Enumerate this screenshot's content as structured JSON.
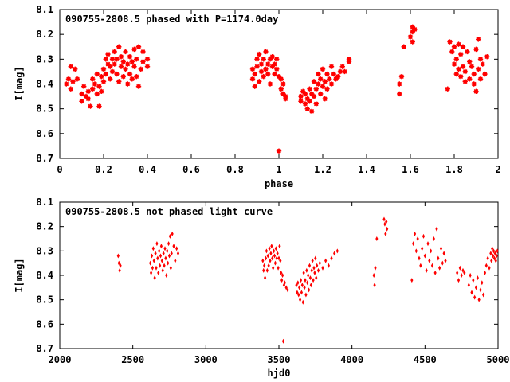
{
  "chart_data": [
    {
      "type": "scatter",
      "title": "090755-2808.5 phased with P=1174.0day",
      "xlabel": "phase",
      "ylabel": "I[mag]",
      "xlim": [
        0,
        2
      ],
      "ylim": [
        8.7,
        8.1
      ],
      "y_inverted": true,
      "xticks": [
        "0",
        "0.2",
        "0.4",
        "0.6",
        "0.8",
        "1",
        "1.2",
        "1.4",
        "1.6",
        "1.8",
        "2"
      ],
      "yticks": [
        "8.1",
        "8.2",
        "8.3",
        "8.4",
        "8.5",
        "8.6",
        "8.7"
      ],
      "marker_color": "#ff0000",
      "points": [
        [
          0.03,
          8.4
        ],
        [
          0.04,
          8.38
        ],
        [
          0.05,
          8.33
        ],
        [
          0.05,
          8.42
        ],
        [
          0.06,
          8.39
        ],
        [
          0.07,
          8.34
        ],
        [
          0.08,
          8.38
        ],
        [
          0.1,
          8.44
        ],
        [
          0.1,
          8.47
        ],
        [
          0.11,
          8.41
        ],
        [
          0.12,
          8.45
        ],
        [
          0.13,
          8.46
        ],
        [
          0.13,
          8.43
        ],
        [
          0.14,
          8.49
        ],
        [
          0.15,
          8.42
        ],
        [
          0.15,
          8.38
        ],
        [
          0.16,
          8.4
        ],
        [
          0.17,
          8.44
        ],
        [
          0.17,
          8.36
        ],
        [
          0.18,
          8.41
        ],
        [
          0.18,
          8.49
        ],
        [
          0.19,
          8.43
        ],
        [
          0.19,
          8.37
        ],
        [
          0.2,
          8.34
        ],
        [
          0.2,
          8.39
        ],
        [
          0.21,
          8.3
        ],
        [
          0.21,
          8.36
        ],
        [
          0.22,
          8.32
        ],
        [
          0.22,
          8.28
        ],
        [
          0.23,
          8.33
        ],
        [
          0.23,
          8.38
        ],
        [
          0.24,
          8.3
        ],
        [
          0.24,
          8.35
        ],
        [
          0.25,
          8.27
        ],
        [
          0.25,
          8.32
        ],
        [
          0.26,
          8.36
        ],
        [
          0.26,
          8.3
        ],
        [
          0.27,
          8.39
        ],
        [
          0.27,
          8.25
        ],
        [
          0.28,
          8.33
        ],
        [
          0.28,
          8.29
        ],
        [
          0.29,
          8.37
        ],
        [
          0.29,
          8.31
        ],
        [
          0.3,
          8.34
        ],
        [
          0.3,
          8.27
        ],
        [
          0.31,
          8.4
        ],
        [
          0.31,
          8.32
        ],
        [
          0.32,
          8.29
        ],
        [
          0.32,
          8.36
        ],
        [
          0.33,
          8.31
        ],
        [
          0.33,
          8.38
        ],
        [
          0.34,
          8.26
        ],
        [
          0.34,
          8.33
        ],
        [
          0.35,
          8.3
        ],
        [
          0.35,
          8.37
        ],
        [
          0.36,
          8.41
        ],
        [
          0.36,
          8.25
        ],
        [
          0.37,
          8.34
        ],
        [
          0.38,
          8.31
        ],
        [
          0.38,
          8.27
        ],
        [
          0.4,
          8.33
        ],
        [
          0.4,
          8.3
        ],
        [
          0.88,
          8.34
        ],
        [
          0.88,
          8.38
        ],
        [
          0.89,
          8.41
        ],
        [
          0.89,
          8.36
        ],
        [
          0.9,
          8.33
        ],
        [
          0.9,
          8.3
        ],
        [
          0.91,
          8.39
        ],
        [
          0.91,
          8.28
        ],
        [
          0.92,
          8.35
        ],
        [
          0.92,
          8.32
        ],
        [
          0.93,
          8.37
        ],
        [
          0.93,
          8.3
        ],
        [
          0.94,
          8.34
        ],
        [
          0.94,
          8.27
        ],
        [
          0.95,
          8.32
        ],
        [
          0.95,
          8.36
        ],
        [
          0.96,
          8.3
        ],
        [
          0.96,
          8.4
        ],
        [
          0.97,
          8.33
        ],
        [
          0.97,
          8.29
        ],
        [
          0.98,
          8.36
        ],
        [
          0.98,
          8.32
        ],
        [
          0.99,
          8.34
        ],
        [
          0.99,
          8.3
        ],
        [
          1.0,
          8.37
        ],
        [
          1.0,
          8.67
        ],
        [
          1.01,
          8.38
        ],
        [
          1.01,
          8.42
        ],
        [
          1.02,
          8.4
        ],
        [
          1.02,
          8.44
        ],
        [
          1.03,
          8.45
        ],
        [
          1.03,
          8.46
        ],
        [
          1.1,
          8.45
        ],
        [
          1.1,
          8.47
        ],
        [
          1.11,
          8.43
        ],
        [
          1.12,
          8.48
        ],
        [
          1.12,
          8.44
        ],
        [
          1.13,
          8.46
        ],
        [
          1.13,
          8.5
        ],
        [
          1.14,
          8.42
        ],
        [
          1.14,
          8.47
        ],
        [
          1.15,
          8.51
        ],
        [
          1.15,
          8.44
        ],
        [
          1.16,
          8.39
        ],
        [
          1.16,
          8.45
        ],
        [
          1.17,
          8.42
        ],
        [
          1.17,
          8.48
        ],
        [
          1.18,
          8.4
        ],
        [
          1.18,
          8.36
        ],
        [
          1.19,
          8.44
        ],
        [
          1.19,
          8.38
        ],
        [
          1.2,
          8.41
        ],
        [
          1.2,
          8.34
        ],
        [
          1.21,
          8.46
        ],
        [
          1.21,
          8.39
        ],
        [
          1.22,
          8.36
        ],
        [
          1.22,
          8.42
        ],
        [
          1.23,
          8.38
        ],
        [
          1.24,
          8.33
        ],
        [
          1.24,
          8.4
        ],
        [
          1.25,
          8.36
        ],
        [
          1.26,
          8.38
        ],
        [
          1.27,
          8.37
        ],
        [
          1.28,
          8.35
        ],
        [
          1.29,
          8.33
        ],
        [
          1.3,
          8.35
        ],
        [
          1.32,
          8.3
        ],
        [
          1.32,
          8.31
        ],
        [
          1.55,
          8.4
        ],
        [
          1.55,
          8.44
        ],
        [
          1.56,
          8.37
        ],
        [
          1.57,
          8.25
        ],
        [
          1.61,
          8.17
        ],
        [
          1.61,
          8.19
        ],
        [
          1.62,
          8.18
        ],
        [
          1.61,
          8.23
        ],
        [
          1.6,
          8.21
        ],
        [
          1.77,
          8.42
        ],
        [
          1.78,
          8.23
        ],
        [
          1.79,
          8.27
        ],
        [
          1.8,
          8.25
        ],
        [
          1.8,
          8.32
        ],
        [
          1.81,
          8.3
        ],
        [
          1.81,
          8.36
        ],
        [
          1.82,
          8.24
        ],
        [
          1.82,
          8.34
        ],
        [
          1.83,
          8.28
        ],
        [
          1.83,
          8.37
        ],
        [
          1.84,
          8.33
        ],
        [
          1.84,
          8.25
        ],
        [
          1.85,
          8.39
        ],
        [
          1.85,
          8.35
        ],
        [
          1.86,
          8.27
        ],
        [
          1.87,
          8.31
        ],
        [
          1.87,
          8.38
        ],
        [
          1.88,
          8.33
        ],
        [
          1.89,
          8.36
        ],
        [
          1.89,
          8.4
        ],
        [
          1.9,
          8.43
        ],
        [
          1.9,
          8.26
        ],
        [
          1.91,
          8.22
        ],
        [
          1.91,
          8.34
        ],
        [
          1.92,
          8.3
        ],
        [
          1.92,
          8.38
        ],
        [
          1.93,
          8.32
        ],
        [
          1.94,
          8.36
        ],
        [
          1.95,
          8.29
        ]
      ]
    },
    {
      "type": "scatter",
      "title": "090755-2808.5 not phased light curve",
      "xlabel": "hjd0",
      "ylabel": "I[mag]",
      "xlim": [
        2000,
        5000
      ],
      "ylim": [
        8.7,
        8.1
      ],
      "y_inverted": true,
      "xticks": [
        "2000",
        "2500",
        "3000",
        "3500",
        "4000",
        "4500",
        "5000"
      ],
      "yticks": [
        "8.1",
        "8.2",
        "8.3",
        "8.4",
        "8.5",
        "8.6",
        "8.7"
      ],
      "marker_color": "#ff0000",
      "points": [
        [
          2400,
          8.32
        ],
        [
          2405,
          8.35
        ],
        [
          2410,
          8.38
        ],
        [
          2415,
          8.36
        ],
        [
          2620,
          8.35
        ],
        [
          2625,
          8.39
        ],
        [
          2630,
          8.32
        ],
        [
          2635,
          8.37
        ],
        [
          2640,
          8.29
        ],
        [
          2645,
          8.34
        ],
        [
          2650,
          8.41
        ],
        [
          2655,
          8.31
        ],
        [
          2660,
          8.37
        ],
        [
          2665,
          8.27
        ],
        [
          2670,
          8.33
        ],
        [
          2675,
          8.39
        ],
        [
          2680,
          8.3
        ],
        [
          2685,
          8.36
        ],
        [
          2690,
          8.32
        ],
        [
          2695,
          8.28
        ],
        [
          2700,
          8.34
        ],
        [
          2705,
          8.38
        ],
        [
          2710,
          8.31
        ],
        [
          2715,
          8.36
        ],
        [
          2720,
          8.29
        ],
        [
          2725,
          8.33
        ],
        [
          2730,
          8.4
        ],
        [
          2735,
          8.3
        ],
        [
          2740,
          8.35
        ],
        [
          2745,
          8.27
        ],
        [
          2750,
          8.32
        ],
        [
          2755,
          8.24
        ],
        [
          2760,
          8.37
        ],
        [
          2765,
          8.31
        ],
        [
          2770,
          8.23
        ],
        [
          2780,
          8.28
        ],
        [
          2790,
          8.34
        ],
        [
          2800,
          8.29
        ],
        [
          2810,
          8.31
        ],
        [
          3390,
          8.34
        ],
        [
          3395,
          8.38
        ],
        [
          3400,
          8.36
        ],
        [
          3405,
          8.41
        ],
        [
          3410,
          8.33
        ],
        [
          3415,
          8.3
        ],
        [
          3420,
          8.38
        ],
        [
          3425,
          8.32
        ],
        [
          3430,
          8.36
        ],
        [
          3435,
          8.29
        ],
        [
          3440,
          8.34
        ],
        [
          3445,
          8.31
        ],
        [
          3450,
          8.28
        ],
        [
          3455,
          8.33
        ],
        [
          3460,
          8.37
        ],
        [
          3465,
          8.3
        ],
        [
          3470,
          8.32
        ],
        [
          3475,
          8.35
        ],
        [
          3480,
          8.29
        ],
        [
          3485,
          8.33
        ],
        [
          3490,
          8.31
        ],
        [
          3495,
          8.37
        ],
        [
          3500,
          8.33
        ],
        [
          3505,
          8.28
        ],
        [
          3510,
          8.34
        ],
        [
          3515,
          8.39
        ],
        [
          3520,
          8.42
        ],
        [
          3525,
          8.4
        ],
        [
          3530,
          8.67
        ],
        [
          3535,
          8.44
        ],
        [
          3540,
          8.43
        ],
        [
          3550,
          8.45
        ],
        [
          3560,
          8.46
        ],
        [
          3620,
          8.44
        ],
        [
          3625,
          8.47
        ],
        [
          3630,
          8.43
        ],
        [
          3635,
          8.48
        ],
        [
          3640,
          8.45
        ],
        [
          3645,
          8.5
        ],
        [
          3650,
          8.42
        ],
        [
          3655,
          8.47
        ],
        [
          3660,
          8.44
        ],
        [
          3665,
          8.51
        ],
        [
          3670,
          8.39
        ],
        [
          3675,
          8.45
        ],
        [
          3680,
          8.42
        ],
        [
          3685,
          8.48
        ],
        [
          3690,
          8.38
        ],
        [
          3695,
          8.43
        ],
        [
          3700,
          8.4
        ],
        [
          3705,
          8.46
        ],
        [
          3710,
          8.36
        ],
        [
          3715,
          8.41
        ],
        [
          3720,
          8.44
        ],
        [
          3725,
          8.38
        ],
        [
          3730,
          8.34
        ],
        [
          3735,
          8.42
        ],
        [
          3740,
          8.37
        ],
        [
          3745,
          8.39
        ],
        [
          3750,
          8.33
        ],
        [
          3755,
          8.41
        ],
        [
          3760,
          8.36
        ],
        [
          3770,
          8.38
        ],
        [
          3780,
          8.35
        ],
        [
          3800,
          8.37
        ],
        [
          3820,
          8.34
        ],
        [
          3840,
          8.36
        ],
        [
          3860,
          8.33
        ],
        [
          3880,
          8.31
        ],
        [
          3900,
          8.3
        ],
        [
          4150,
          8.4
        ],
        [
          4155,
          8.44
        ],
        [
          4160,
          8.37
        ],
        [
          4170,
          8.25
        ],
        [
          4220,
          8.17
        ],
        [
          4225,
          8.19
        ],
        [
          4230,
          8.23
        ],
        [
          4235,
          8.18
        ],
        [
          4240,
          8.21
        ],
        [
          4410,
          8.42
        ],
        [
          4420,
          8.27
        ],
        [
          4430,
          8.23
        ],
        [
          4440,
          8.3
        ],
        [
          4450,
          8.25
        ],
        [
          4460,
          8.33
        ],
        [
          4470,
          8.36
        ],
        [
          4480,
          8.29
        ],
        [
          4490,
          8.24
        ],
        [
          4500,
          8.32
        ],
        [
          4510,
          8.38
        ],
        [
          4520,
          8.27
        ],
        [
          4530,
          8.34
        ],
        [
          4540,
          8.3
        ],
        [
          4550,
          8.36
        ],
        [
          4560,
          8.25
        ],
        [
          4570,
          8.39
        ],
        [
          4580,
          8.21
        ],
        [
          4590,
          8.33
        ],
        [
          4600,
          8.37
        ],
        [
          4610,
          8.29
        ],
        [
          4620,
          8.35
        ],
        [
          4630,
          8.31
        ],
        [
          4640,
          8.34
        ],
        [
          4720,
          8.39
        ],
        [
          4730,
          8.42
        ],
        [
          4740,
          8.37
        ],
        [
          4750,
          8.4
        ],
        [
          4760,
          8.38
        ],
        [
          4770,
          8.39
        ],
        [
          4800,
          8.44
        ],
        [
          4810,
          8.4
        ],
        [
          4820,
          8.47
        ],
        [
          4830,
          8.42
        ],
        [
          4840,
          8.49
        ],
        [
          4850,
          8.45
        ],
        [
          4860,
          8.41
        ],
        [
          4870,
          8.5
        ],
        [
          4880,
          8.46
        ],
        [
          4890,
          8.43
        ],
        [
          4900,
          8.48
        ],
        [
          4910,
          8.39
        ],
        [
          4920,
          8.36
        ],
        [
          4930,
          8.33
        ],
        [
          4940,
          8.37
        ],
        [
          4950,
          8.31
        ],
        [
          4955,
          8.34
        ],
        [
          4960,
          8.29
        ],
        [
          4965,
          8.32
        ],
        [
          4970,
          8.3
        ],
        [
          4975,
          8.33
        ],
        [
          4980,
          8.31
        ],
        [
          4985,
          8.34
        ],
        [
          4990,
          8.32
        ],
        [
          4995,
          8.3
        ]
      ]
    }
  ]
}
